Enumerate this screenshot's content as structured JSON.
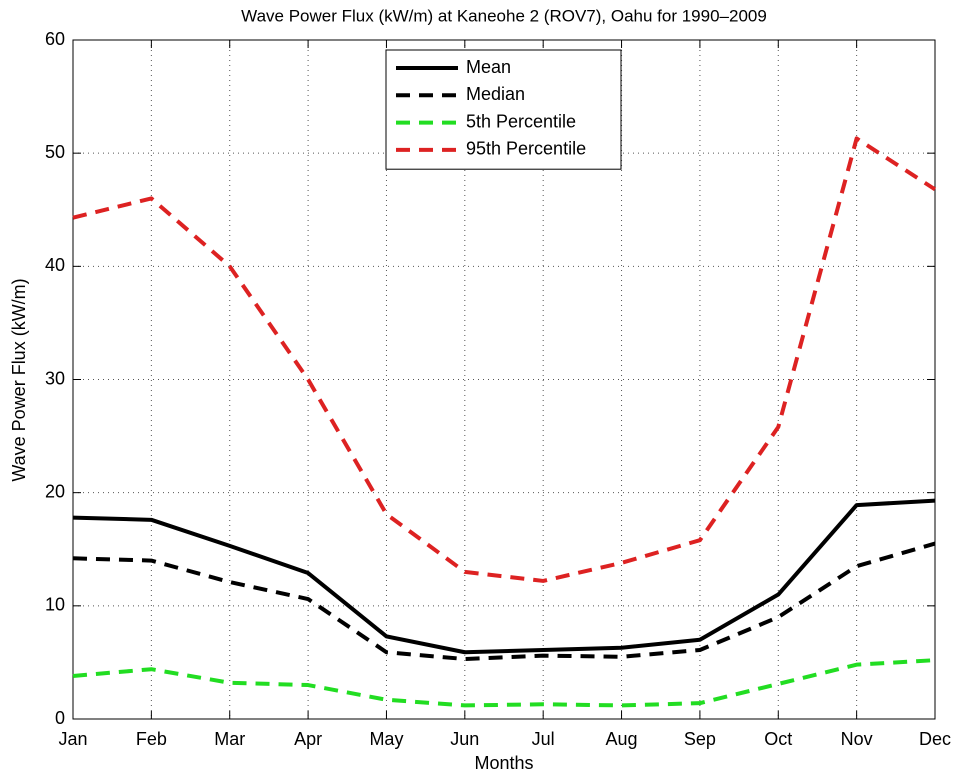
{
  "chart_data": {
    "type": "line",
    "title": "Wave Power Flux (kW/m) at Kaneohe 2 (ROV7), Oahu for 1990–2009",
    "x_label": "Months",
    "y_label": "Wave Power Flux (kW/m)",
    "categories": [
      "Jan",
      "Feb",
      "Mar",
      "Apr",
      "May",
      "Jun",
      "Jul",
      "Aug",
      "Sep",
      "Oct",
      "Nov",
      "Dec"
    ],
    "series": [
      {
        "name": "Mean",
        "color": "#000000",
        "linestyle": "solid",
        "values": [
          17.8,
          17.6,
          15.3,
          12.9,
          7.3,
          5.9,
          6.1,
          6.3,
          7.0,
          11.0,
          18.9,
          19.3
        ]
      },
      {
        "name": "Median",
        "color": "#000000",
        "linestyle": "dashed",
        "values": [
          14.2,
          14.0,
          12.1,
          10.6,
          5.9,
          5.3,
          5.6,
          5.5,
          6.1,
          9.0,
          13.5,
          15.5
        ]
      },
      {
        "name": "5th Percentile",
        "color": "#22dd22",
        "linestyle": "dashed",
        "values": [
          3.8,
          4.4,
          3.2,
          3.0,
          1.7,
          1.2,
          1.3,
          1.2,
          1.4,
          3.1,
          4.8,
          5.2
        ]
      },
      {
        "name": "95th Percentile",
        "color": "#dd2222",
        "linestyle": "dashed",
        "values": [
          44.3,
          46.0,
          40.0,
          30.0,
          18.1,
          13.0,
          12.2,
          13.8,
          15.8,
          25.8,
          51.3,
          46.8
        ]
      }
    ],
    "ylim": [
      0,
      60
    ],
    "yticks": [
      0,
      10,
      20,
      30,
      40,
      50,
      60
    ],
    "grid": true,
    "legend": "top"
  }
}
